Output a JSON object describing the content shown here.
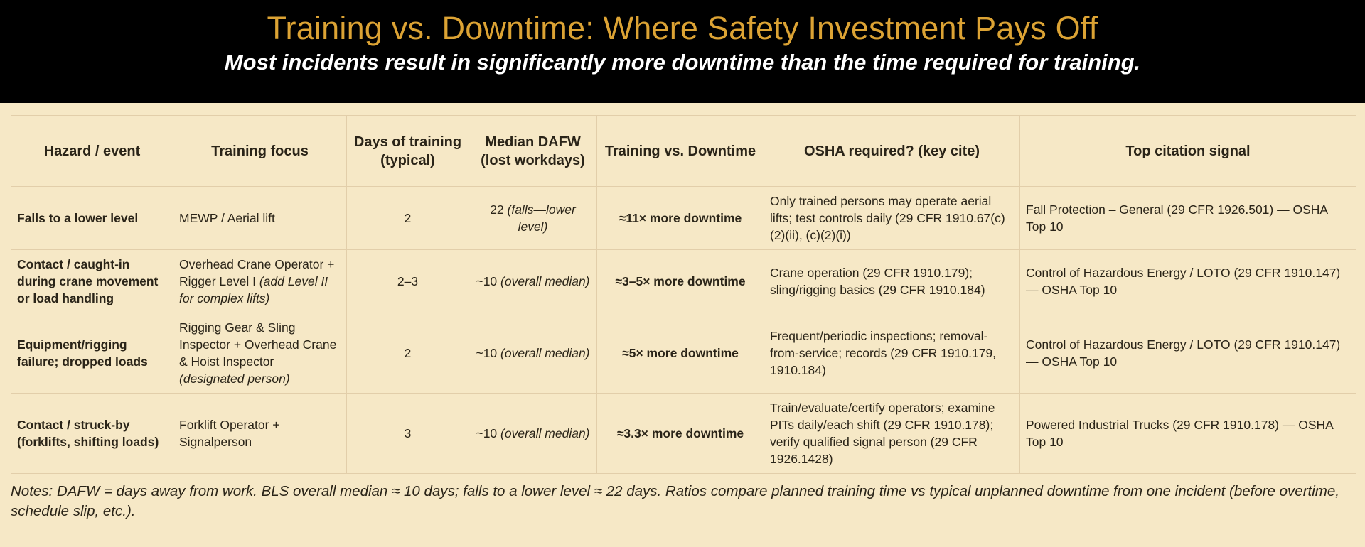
{
  "header": {
    "title": "Training vs. Downtime: Where Safety Investment Pays Off",
    "subtitle": "Most incidents result in significantly more downtime than the time required for training.",
    "colors": {
      "banner_bg": "#000000",
      "title": "#dca334",
      "subtitle": "#ffffff",
      "page_bg": "#f6e8c6"
    }
  },
  "table": {
    "columns": [
      "Hazard / event",
      "Training focus",
      "Days of training (typical)",
      "Median DAFW (lost workdays)",
      "Training vs. Downtime",
      "OSHA required? (key cite)",
      "Top citation signal"
    ],
    "rows": [
      {
        "hazard": "Falls to a lower level",
        "training": "MEWP / Aerial lift",
        "training_note": "",
        "days": "2",
        "dafw_value": "22",
        "dafw_note": "(falls—lower level)",
        "ratio": "≈11× more downtime",
        "osha": "Only trained persons may operate aerial lifts; test controls daily (29 CFR 1910.67(c)(2)(ii), (c)(2)(i))",
        "citation": "Fall Protection – General (29 CFR 1926.501) — OSHA Top 10"
      },
      {
        "hazard": "Contact / caught-in during crane movement or load handling",
        "training": "Overhead Crane Operator + Rigger Level I",
        "training_note": "(add Level II for complex lifts)",
        "days": "2–3",
        "dafw_value": "~10",
        "dafw_note": "(overall median)",
        "ratio": "≈3–5× more downtime",
        "osha": "Crane operation (29 CFR 1910.179); sling/rigging basics (29 CFR 1910.184)",
        "citation": "Control of Hazardous Energy / LOTO (29 CFR 1910.147) — OSHA Top 10"
      },
      {
        "hazard": "Equipment/rigging failure; dropped loads",
        "training": "Rigging Gear & Sling Inspector + Overhead Crane & Hoist Inspector",
        "training_note": "(designated person)",
        "days": "2",
        "dafw_value": "~10",
        "dafw_note": "(overall median)",
        "ratio": "≈5× more downtime",
        "osha": "Frequent/periodic inspections; removal-from-service; records (29 CFR 1910.179, 1910.184)",
        "citation": "Control of Hazardous Energy / LOTO (29 CFR 1910.147) — OSHA Top 10"
      },
      {
        "hazard": "Contact / struck-by (forklifts, shifting loads)",
        "training": "Forklift Operator + Signalperson",
        "training_note": "",
        "days": "3",
        "dafw_value": "~10",
        "dafw_note": "(overall median)",
        "ratio": "≈3.3× more downtime",
        "osha": "Train/evaluate/certify operators; examine PITs daily/each shift (29 CFR 1910.178); verify qualified signal person (29 CFR 1926.1428)",
        "citation": "Powered Industrial Trucks (29 CFR 1910.178) — OSHA Top 10"
      }
    ]
  },
  "notes": "Notes: DAFW = days away from work. BLS overall median ≈ 10 days; falls to a lower level ≈ 22 days. Ratios compare planned training time vs typical unplanned downtime from one incident (before overtime, schedule slip, etc.)."
}
